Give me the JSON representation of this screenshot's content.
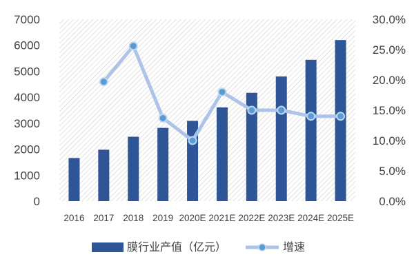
{
  "chart_data": {
    "type": "bar+line",
    "categories": [
      "2016",
      "2017",
      "2018",
      "2019",
      "2020E",
      "2021E",
      "2022E",
      "2023E",
      "2024E",
      "2025E"
    ],
    "series": [
      {
        "name": "膜行业产值（亿元）",
        "type": "bar",
        "axis": "left",
        "color": "#2F5597",
        "values": [
          1660,
          1980,
          2480,
          2820,
          3090,
          3610,
          4170,
          4800,
          5440,
          6200
        ]
      },
      {
        "name": "增速",
        "type": "line",
        "axis": "right",
        "color": "#AEC3E8",
        "marker_color": "#5B9BD5",
        "values": [
          null,
          19.7,
          25.6,
          13.7,
          10.0,
          18.0,
          15.0,
          15.0,
          14.0,
          14.0
        ]
      }
    ],
    "left_axis": {
      "ylim": [
        0,
        7000
      ],
      "ticks": [
        "0",
        "1000",
        "2000",
        "3000",
        "4000",
        "5000",
        "6000",
        "7000"
      ]
    },
    "right_axis": {
      "ylim": [
        0,
        30
      ],
      "ticks": [
        "0.0%",
        "5.0%",
        "10.0%",
        "15.0%",
        "20.0%",
        "25.0%",
        "30.0%"
      ]
    },
    "grid": false,
    "background": "diagonal-hatch",
    "legend_position": "bottom"
  }
}
